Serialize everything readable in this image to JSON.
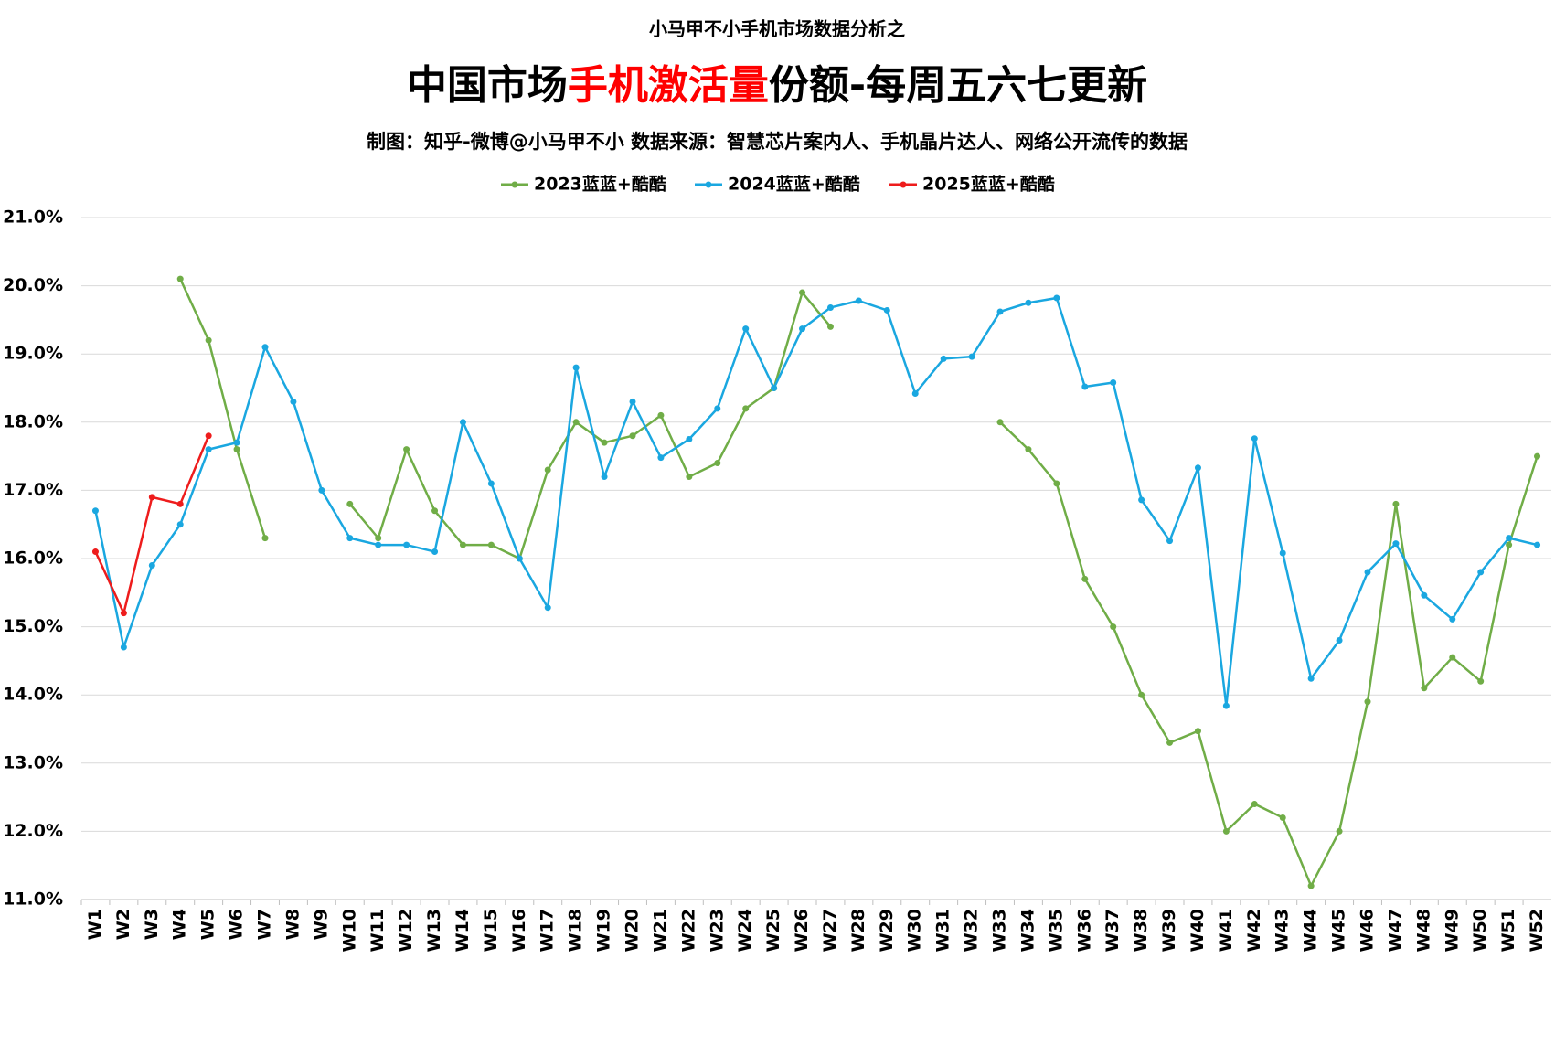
{
  "chart_data": {
    "type": "line",
    "supertitle": "小马甲不小手机市场数据分析之",
    "title": [
      "中国市场",
      "手机激活量",
      "份额-每周五六七更新"
    ],
    "title_colors": [
      "#000000",
      "#ff0000",
      "#000000"
    ],
    "subtitle": "制图：知乎-微博@小马甲不小  数据来源：智慧芯片案内人、手机晶片达人、网络公开流传的数据",
    "categories": [
      "W1",
      "W2",
      "W3",
      "W4",
      "W5",
      "W6",
      "W7",
      "W8",
      "W9",
      "W10",
      "W11",
      "W12",
      "W13",
      "W14",
      "W15",
      "W16",
      "W17",
      "W18",
      "W19",
      "W20",
      "W21",
      "W22",
      "W23",
      "W24",
      "W25",
      "W26",
      "W27",
      "W28",
      "W29",
      "W30",
      "W31",
      "W32",
      "W33",
      "W34",
      "W35",
      "W36",
      "W37",
      "W38",
      "W39",
      "W40",
      "W41",
      "W42",
      "W43",
      "W44",
      "W45",
      "W46",
      "W47",
      "W48",
      "W49",
      "W50",
      "W51",
      "W52"
    ],
    "series": [
      {
        "name": "2023蓝蓝+酷酷",
        "color": "#70ad47",
        "values": [
          null,
          null,
          null,
          20.1,
          19.2,
          17.6,
          16.3,
          null,
          null,
          16.8,
          16.3,
          17.6,
          16.7,
          16.2,
          16.2,
          16.0,
          17.3,
          18.0,
          17.7,
          17.8,
          18.1,
          17.2,
          17.4,
          18.2,
          18.5,
          19.9,
          19.4,
          null,
          null,
          null,
          null,
          null,
          18.0,
          17.6,
          17.1,
          15.7,
          15.0,
          14.0,
          13.3,
          13.47,
          12.0,
          12.4,
          12.2,
          11.2,
          12.0,
          13.9,
          16.8,
          14.1,
          14.55,
          14.2,
          16.2,
          17.5
        ]
      },
      {
        "name": "2024蓝蓝+酷酷",
        "color": "#1aa7e0",
        "values": [
          16.7,
          14.7,
          15.9,
          16.5,
          17.6,
          17.7,
          19.1,
          18.3,
          17.0,
          16.3,
          16.2,
          16.2,
          16.1,
          18.0,
          17.1,
          16.0,
          15.28,
          18.8,
          17.2,
          18.3,
          17.48,
          17.75,
          18.2,
          19.37,
          18.5,
          19.37,
          19.68,
          19.78,
          19.64,
          18.42,
          18.93,
          18.96,
          19.62,
          19.75,
          19.82,
          18.52,
          18.58,
          16.86,
          16.26,
          17.33,
          13.84,
          17.76,
          16.08,
          14.24,
          14.8,
          15.8,
          16.22,
          15.46,
          15.11,
          15.8,
          16.3,
          16.2
        ]
      },
      {
        "name": "2025蓝蓝+酷酷",
        "color": "#ee1c1c",
        "values": [
          16.1,
          15.2,
          16.9,
          16.8,
          17.8,
          null,
          null,
          null,
          null,
          null,
          null,
          null,
          null,
          null,
          null,
          null,
          null,
          null,
          null,
          null,
          null,
          null,
          null,
          null,
          null,
          null,
          null,
          null,
          null,
          null,
          null,
          null,
          null,
          null,
          null,
          null,
          null,
          null,
          null,
          null,
          null,
          null,
          null,
          null,
          null,
          null,
          null,
          null,
          null,
          null,
          null,
          null
        ]
      }
    ],
    "ylim": [
      11,
      21
    ],
    "yticks": [
      {
        "value": 11,
        "label": "11.0%"
      },
      {
        "value": 12,
        "label": "12.0%"
      },
      {
        "value": 13,
        "label": "13.0%"
      },
      {
        "value": 14,
        "label": "14.0%"
      },
      {
        "value": 15,
        "label": "15.0%"
      },
      {
        "value": 16,
        "label": "16.0%"
      },
      {
        "value": 17,
        "label": "17.0%"
      },
      {
        "value": 18,
        "label": "18.0%"
      },
      {
        "value": 19,
        "label": "19.0%"
      },
      {
        "value": 20,
        "label": "20.0%"
      },
      {
        "value": 21,
        "label": "21.0%"
      }
    ],
    "grid": true,
    "legend": "top"
  }
}
